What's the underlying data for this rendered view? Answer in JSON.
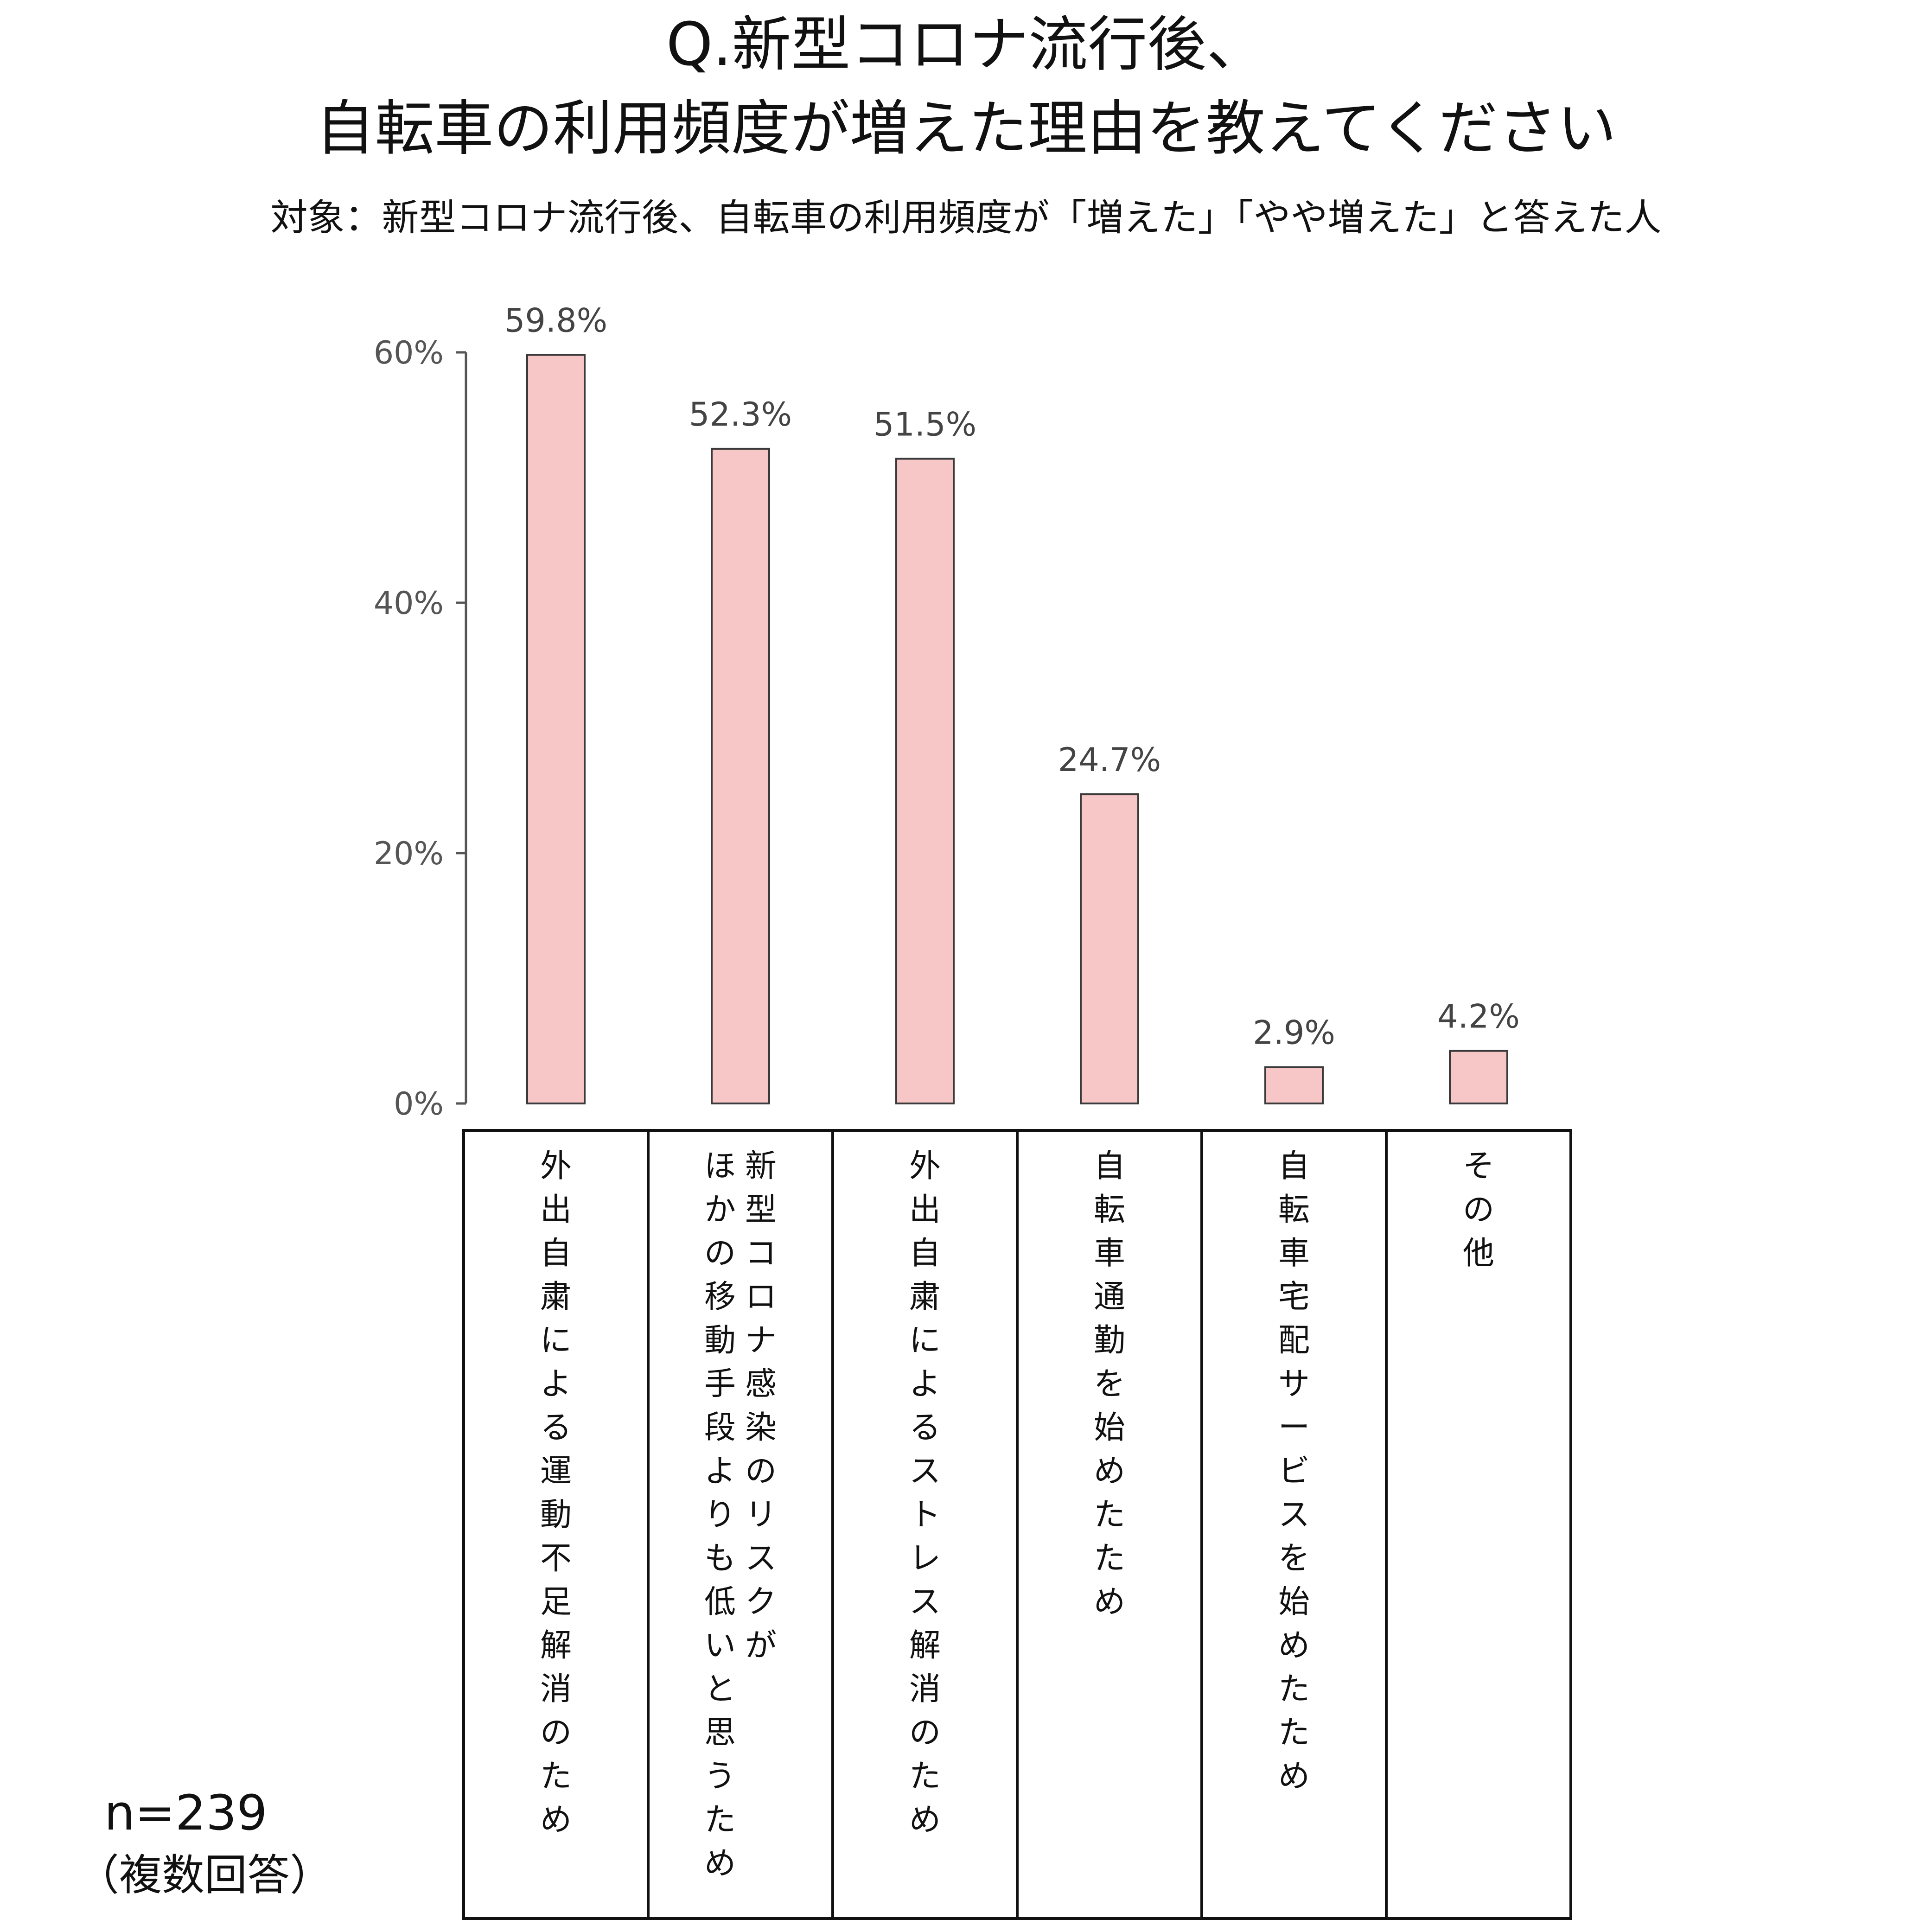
{
  "title": {
    "line1": "Q.新型コロナ流行後、",
    "line2": "自転車の利用頻度が増えた理由を教えてください"
  },
  "subtitle": "対象：新型コロナ流行後、自転車の利用頻度が「増えた」「やや増えた」と答えた人",
  "note": {
    "n": "n=239",
    "multiple": "（複数回答）"
  },
  "colors": {
    "bar_fill": "#F7C6C7",
    "bar_stroke": "#3A3A3A",
    "axis": "#555555",
    "table_border": "#111111"
  },
  "chart_data": {
    "type": "bar",
    "categories": [
      "外出自粛による運動不足解消のため",
      "新型コロナ感染のリスクがほかの移動手段よりも低いと思うため",
      "外出自粛によるストレス解消のため",
      "自転車通勤を始めたため",
      "自転車宅配サービスを始めたため",
      "その他"
    ],
    "category_columns": [
      [
        "外出自粛による運動不足解消のため"
      ],
      [
        "新型コロナ感染のリスクが",
        "ほかの移動手段よりも低いと思うため"
      ],
      [
        "外出自粛によるストレス解消のため"
      ],
      [
        "自転車通勤を始めたため"
      ],
      [
        "自転車宅配サービスを始めたため"
      ],
      [
        "その他"
      ]
    ],
    "values": [
      59.8,
      52.3,
      51.5,
      24.7,
      2.9,
      4.2
    ],
    "value_labels": [
      "59.8%",
      "52.3%",
      "51.5%",
      "24.7%",
      "2.9%",
      "4.2%"
    ],
    "ylim": [
      0,
      60
    ],
    "yticks": [
      0,
      20,
      40,
      60
    ],
    "ytick_labels": [
      "0%",
      "20%",
      "40%",
      "60%"
    ],
    "grid": false,
    "legend": "none",
    "title": "Q.新型コロナ流行後、自転車の利用頻度が増えた理由を教えてください",
    "xlabel": "",
    "ylabel": ""
  }
}
